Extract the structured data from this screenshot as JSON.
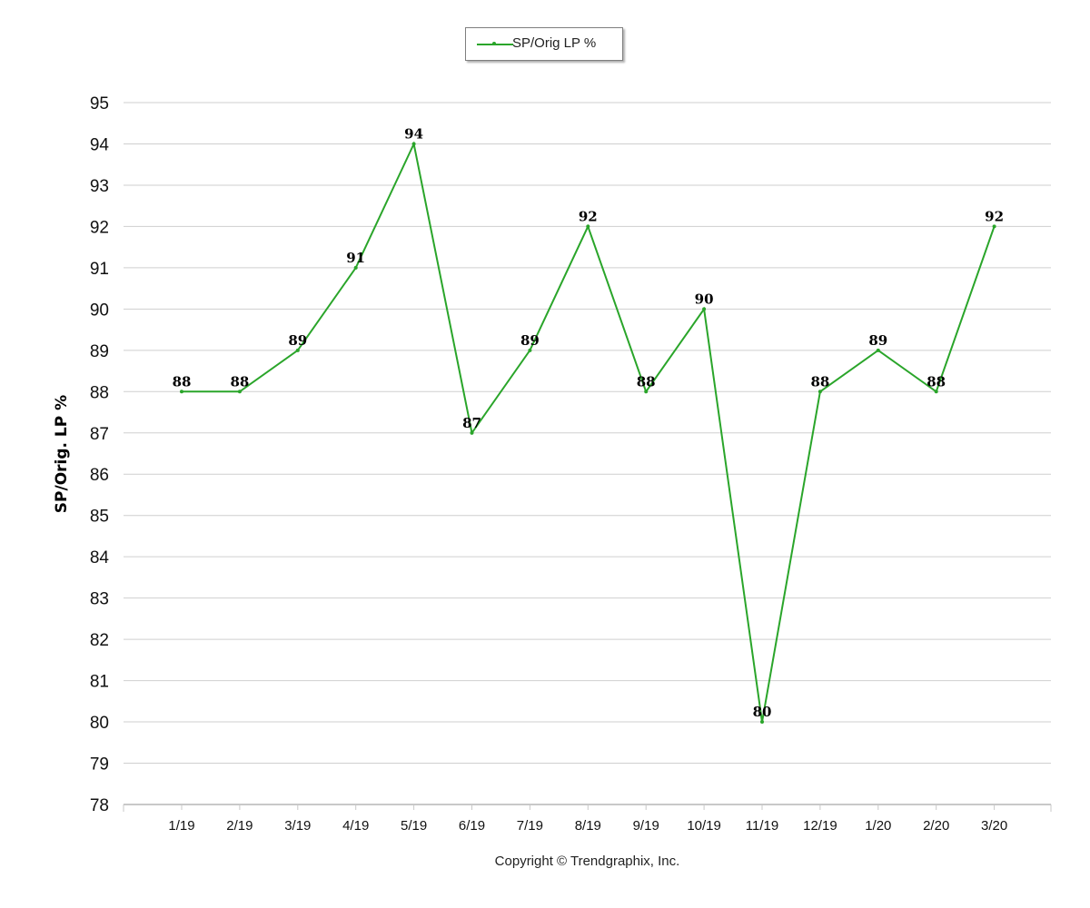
{
  "chart_data": {
    "type": "line",
    "categories": [
      "1/19",
      "2/19",
      "3/19",
      "4/19",
      "5/19",
      "6/19",
      "7/19",
      "8/19",
      "9/19",
      "10/19",
      "11/19",
      "12/19",
      "1/20",
      "2/20",
      "3/20"
    ],
    "series": [
      {
        "name": "SP/Orig LP %",
        "values": [
          88,
          88,
          89,
          91,
          94,
          87,
          89,
          92,
          88,
          90,
          80,
          88,
          89,
          88,
          92
        ]
      }
    ],
    "ylabel": "SP/Orig. LP %",
    "xlabel": "",
    "ylim": [
      78,
      95
    ],
    "yticks": [
      78,
      79,
      80,
      81,
      82,
      83,
      84,
      85,
      86,
      87,
      88,
      89,
      90,
      91,
      92,
      93,
      94,
      95
    ],
    "grid": true,
    "legend": "top-center",
    "line_color": "#2aa52a"
  },
  "footer": {
    "copyright": "Copyright © Trendgraphix, Inc."
  }
}
